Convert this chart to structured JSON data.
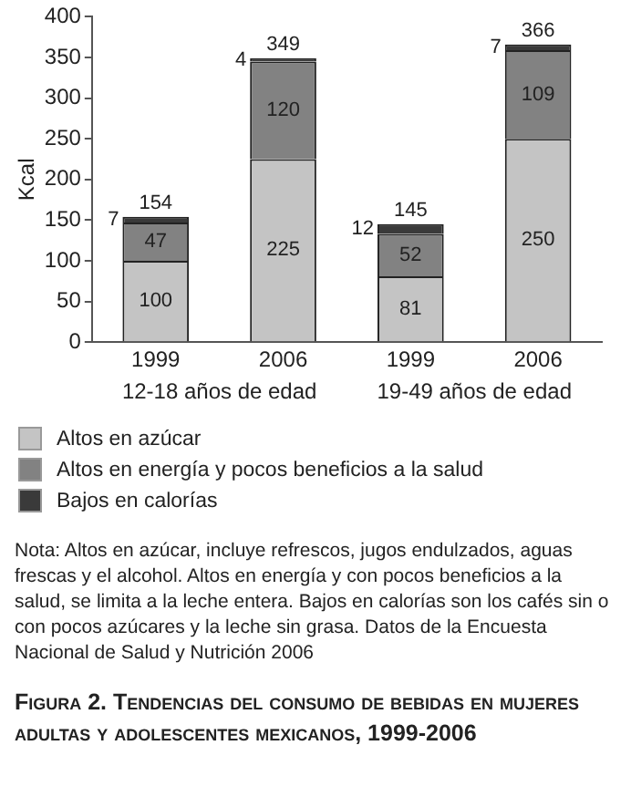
{
  "chart_data": {
    "type": "bar",
    "stacked": true,
    "title": "Figura 2. Tendencias del consumo de bebidas en mujeres adultas y adolescentes mexicanos, 1999-2006",
    "ylabel": "Kcal",
    "categories": [
      "1999",
      "2006",
      "1999",
      "2006"
    ],
    "series": [
      {
        "name": "Altos en azúcar",
        "color": "#c4c4c4",
        "values": [
          100,
          225,
          81,
          250
        ]
      },
      {
        "name": "Altos en energía y pocos beneficios a la salud",
        "color": "#828282",
        "values": [
          47,
          120,
          52,
          109
        ]
      },
      {
        "name": "Bajos en calorías",
        "color": "#3a3a3a",
        "values": [
          7,
          4,
          12,
          7
        ]
      }
    ],
    "totals": [
      "154",
      "349",
      "145",
      "366"
    ],
    "data_labels": true,
    "ylim": [
      0,
      400
    ],
    "yticks": [
      0,
      50,
      100,
      150,
      200,
      250,
      300,
      350,
      400
    ],
    "grid": false,
    "legend": "bottom",
    "annotations": [
      "12-18 años de edad",
      "19-49 años de edad",
      "Nota: Altos en azúcar, incluye refrescos, jugos endulzados, aguas frescas y el alcohol. Altos en energía y con pocos beneficios a la salud, se limita a la leche entera. Bajos en calorías son los cafés sin o con pocos azúcares y la leche sin grasa. Datos de la Encuesta Nacional de Salud y Nutrición 2006"
    ]
  }
}
